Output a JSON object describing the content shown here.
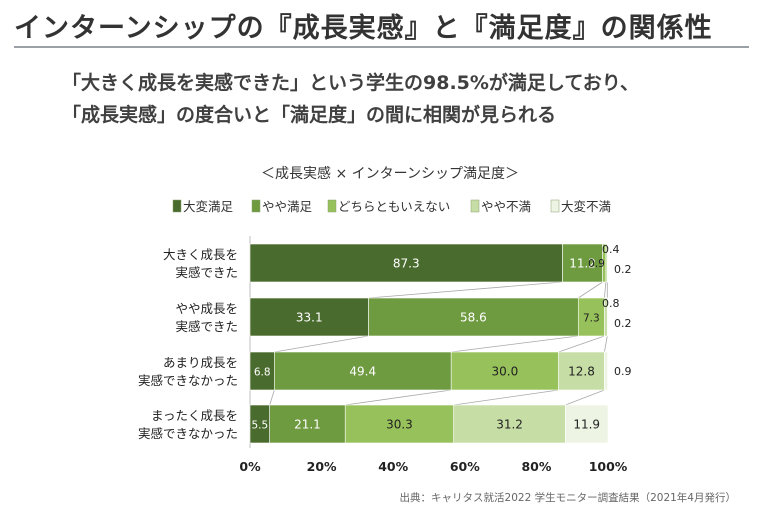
{
  "page": {
    "title": "インターンシップの『成長実感』と『満足度』の関係性",
    "subtitle_line1": "「大きく成長を実感できた」という学生の98.5%が満足しており、",
    "subtitle_line2": "「成長実感」の度合いと「満足度」の間に相関が見られる",
    "source": "出典：キャリタス就活2022 学生モニター調査結果（2021年4月発行）"
  },
  "chart_data": {
    "type": "bar",
    "orientation": "horizontal",
    "stacked": true,
    "title": "＜成長実感 × インターンシップ満足度＞",
    "categories": [
      [
        "大きく成長を",
        "実感できた"
      ],
      [
        "やや成長を",
        "実感できた"
      ],
      [
        "あまり成長を",
        "実感できなかった"
      ],
      [
        "まったく成長を",
        "実感できなかった"
      ]
    ],
    "series": [
      {
        "name": "大変満足",
        "color": "#4a6b2e",
        "text_color": "#ffffff",
        "values": [
          87.3,
          33.1,
          6.8,
          5.5
        ]
      },
      {
        "name": "やや満足",
        "color": "#6e9a40",
        "text_color": "#ffffff",
        "values": [
          11.2,
          58.6,
          49.4,
          21.1
        ]
      },
      {
        "name": "どちらともいえない",
        "color": "#97c15a",
        "text_color": "#222222",
        "values": [
          0.9,
          7.3,
          30.0,
          30.3
        ]
      },
      {
        "name": "やや不満",
        "color": "#c6dea6",
        "text_color": "#222222",
        "values": [
          0.4,
          0.8,
          12.8,
          31.2
        ]
      },
      {
        "name": "大変不満",
        "color": "#eef4e3",
        "text_color": "#222222",
        "values": [
          0.2,
          0.2,
          0.9,
          11.9
        ]
      }
    ],
    "value_labels": [
      [
        "87.3",
        "11.2",
        "0.9",
        "0.4",
        "0.2"
      ],
      [
        "33.1",
        "58.6",
        "7.3",
        "0.8",
        "0.2"
      ],
      [
        "6.8",
        "49.4",
        "30.0",
        "12.8",
        "0.9"
      ],
      [
        "5.5",
        "21.1",
        "30.3",
        "31.2",
        "11.9"
      ]
    ],
    "x_ticks": [
      "0%",
      "20%",
      "40%",
      "60%",
      "80%",
      "100%"
    ],
    "xlim": [
      0,
      100
    ],
    "legend_position": "top",
    "connector_lines": true
  }
}
